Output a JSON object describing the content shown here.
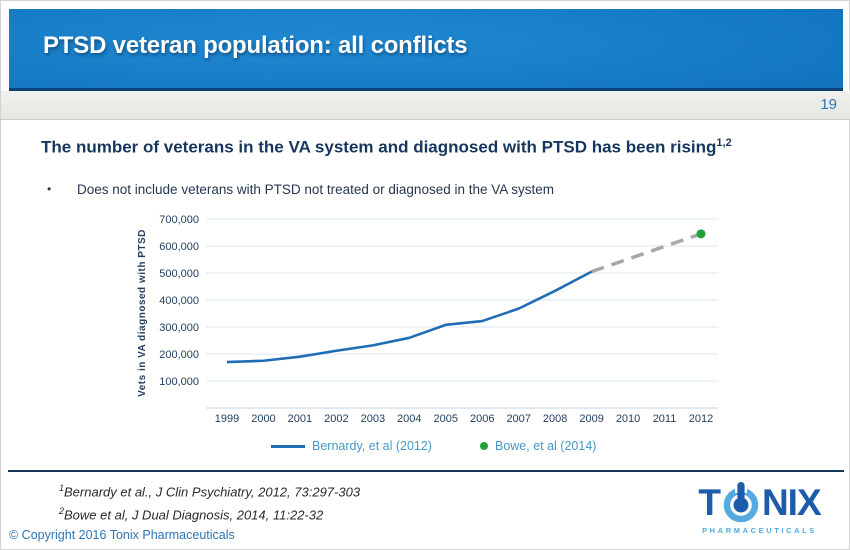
{
  "slide": {
    "title": "PTSD veteran population: all conflicts",
    "page_number": "19",
    "heading": "The number of veterans in the VA system and diagnosed with PTSD has been rising",
    "heading_sup": "1,2",
    "bullet_marker": "•",
    "bullet": "Does not include veterans with PTSD not treated or diagnosed in the VA system",
    "footnotes": [
      {
        "sup": "1",
        "text": "Bernardy et al., J Clin Psychiatry, 2012, 73:297-303"
      },
      {
        "sup": "2",
        "text": "Bowe et al, J Dual Diagnosis, 2014, 11:22-32"
      }
    ],
    "copyright": "© Copyright 2016 Tonix Pharmaceuticals",
    "logo": {
      "left": "T",
      "right": "NIX",
      "subtext": "PHARMACEUTICALS",
      "icon": "power-button-icon",
      "dark_blue": "#1d5bab",
      "light_blue": "#55aadf"
    },
    "accent_colors": {
      "header_blue": "#1377c1",
      "header_border": "#0a4176",
      "band_gray": "#e8e8e4",
      "heading_navy": "#17365d",
      "link_blue": "#2e75b6"
    }
  },
  "chart_data": {
    "type": "line",
    "title": "",
    "xlabel": "",
    "ylabel": "Vets in VA diagnosed with PTSD",
    "x": [
      1999,
      2000,
      2001,
      2002,
      2003,
      2004,
      2005,
      2006,
      2007,
      2008,
      2009,
      2010,
      2011,
      2012
    ],
    "ylim": [
      0,
      700000
    ],
    "grid": true,
    "yticks": [
      {
        "value": 100000,
        "label": "100,000"
      },
      {
        "value": 200000,
        "label": "200,000"
      },
      {
        "value": 300000,
        "label": "300,000"
      },
      {
        "value": 400000,
        "label": "400,000"
      },
      {
        "value": 500000,
        "label": "500,000"
      },
      {
        "value": 600000,
        "label": "600,000"
      },
      {
        "value": 700000,
        "label": "700,000"
      }
    ],
    "series": [
      {
        "name": "Bernardy, et al (2012)",
        "style": "solid",
        "color": "#1e6db5",
        "x": [
          1999,
          2000,
          2001,
          2002,
          2003,
          2004,
          2005,
          2006,
          2007,
          2008,
          2009
        ],
        "values": [
          170000,
          175000,
          190000,
          212000,
          232000,
          260000,
          308000,
          322000,
          368000,
          434000,
          505000
        ]
      },
      {
        "name": "Projection to Bowe 2014 point",
        "style": "dashed",
        "color": "#a8a8a8",
        "x": [
          2009,
          2012
        ],
        "values": [
          505000,
          645000
        ]
      },
      {
        "name": "Bowe, et al (2014)",
        "style": "point",
        "color": "#21a13a",
        "x": [
          2012
        ],
        "values": [
          645000
        ]
      }
    ],
    "legend": [
      {
        "label": "Bernardy, et al (2012)",
        "swatch": "line",
        "color": "#1e6db5"
      },
      {
        "label": "Bowe, et al (2014)",
        "swatch": "dot",
        "color": "#21a13a"
      }
    ],
    "legend_position": "bottom",
    "colors": {
      "grid": "#dde7f0",
      "axis": "#c3d2e0",
      "tick_text": "#24405e",
      "legend_text": "#4599c8"
    }
  }
}
